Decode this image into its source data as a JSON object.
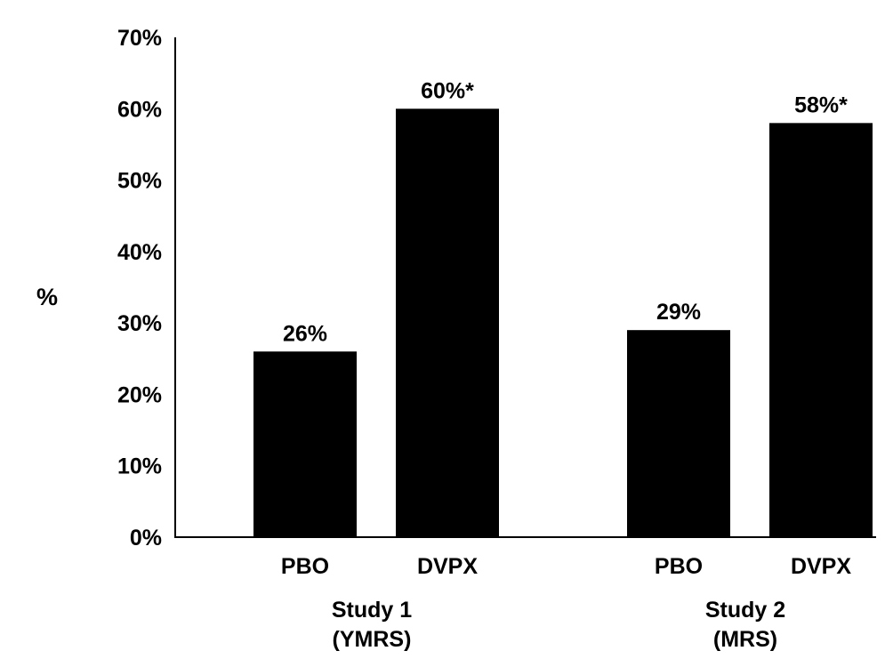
{
  "chart_data": {
    "type": "bar",
    "title": "",
    "ylabel": "%",
    "xlabel": "",
    "ylim": [
      0,
      70
    ],
    "y_ticks": [
      "0%",
      "10%",
      "20%",
      "30%",
      "40%",
      "50%",
      "60%",
      "70%"
    ],
    "grid": false,
    "legend": "none",
    "bar_color": "#000000",
    "groups": [
      {
        "name_line1": "Study 1",
        "name_line2": "(YMRS)",
        "bars": [
          {
            "category": "PBO",
            "value": 26,
            "label": "26%"
          },
          {
            "category": "DVPX",
            "value": 60,
            "label": "60%*"
          }
        ]
      },
      {
        "name_line1": "Study 2",
        "name_line2": "(MRS)",
        "bars": [
          {
            "category": "PBO",
            "value": 29,
            "label": "29%"
          },
          {
            "category": "DVPX",
            "value": 58,
            "label": "58%*"
          }
        ]
      }
    ]
  }
}
